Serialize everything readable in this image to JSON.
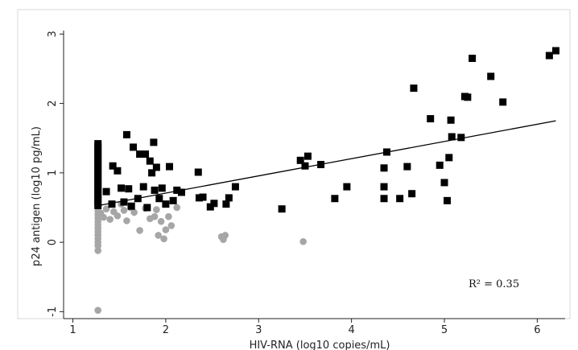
{
  "chart_data": {
    "type": "scatter",
    "xlabel": "HIV-RNA (log10 copies/mL)",
    "ylabel": "p24 antigen (log10 pg/mL)",
    "xlim": [
      0.9,
      6.3
    ],
    "ylim": [
      -1.1,
      3.05
    ],
    "xticks": [
      "1",
      "2",
      "3",
      "4",
      "5",
      "6"
    ],
    "yticks": [
      "-1",
      "0",
      "1",
      "2",
      "3"
    ],
    "grid": false,
    "annotation": "R² = 0.35",
    "colors": {
      "black_series": "#000000",
      "gray_series": "#a6a6a6",
      "fit_line": "#000000"
    },
    "fit_line": {
      "x": [
        1.28,
        6.2
      ],
      "y": [
        0.53,
        1.75
      ]
    },
    "series": [
      {
        "marker": "square",
        "color": "#000000",
        "points": [
          [
            1.27,
            1.42
          ],
          [
            1.27,
            1.38
          ],
          [
            1.27,
            1.33
          ],
          [
            1.27,
            1.28
          ],
          [
            1.27,
            1.23
          ],
          [
            1.27,
            1.18
          ],
          [
            1.27,
            1.13
          ],
          [
            1.27,
            1.08
          ],
          [
            1.27,
            1.03
          ],
          [
            1.27,
            0.98
          ],
          [
            1.27,
            0.93
          ],
          [
            1.27,
            0.88
          ],
          [
            1.27,
            0.83
          ],
          [
            1.27,
            0.78
          ],
          [
            1.27,
            0.73
          ],
          [
            1.27,
            0.68
          ],
          [
            1.27,
            0.63
          ],
          [
            1.27,
            0.58
          ],
          [
            1.27,
            0.53
          ],
          [
            1.36,
            0.73
          ],
          [
            1.42,
            0.55
          ],
          [
            1.43,
            1.1
          ],
          [
            1.48,
            1.03
          ],
          [
            1.52,
            0.78
          ],
          [
            1.55,
            0.58
          ],
          [
            1.58,
            1.55
          ],
          [
            1.6,
            0.77
          ],
          [
            1.63,
            0.52
          ],
          [
            1.65,
            1.37
          ],
          [
            1.7,
            0.63
          ],
          [
            1.72,
            1.27
          ],
          [
            1.76,
            0.8
          ],
          [
            1.78,
            1.27
          ],
          [
            1.8,
            0.5
          ],
          [
            1.83,
            1.17
          ],
          [
            1.85,
            1.0
          ],
          [
            1.87,
            1.44
          ],
          [
            1.88,
            0.75
          ],
          [
            1.9,
            1.08
          ],
          [
            1.93,
            0.63
          ],
          [
            1.96,
            0.78
          ],
          [
            2.0,
            0.55
          ],
          [
            2.04,
            1.09
          ],
          [
            2.08,
            0.6
          ],
          [
            2.12,
            0.75
          ],
          [
            2.17,
            0.72
          ],
          [
            2.35,
            1.01
          ],
          [
            2.36,
            0.64
          ],
          [
            2.4,
            0.65
          ],
          [
            2.48,
            0.51
          ],
          [
            2.52,
            0.56
          ],
          [
            2.65,
            0.55
          ],
          [
            2.68,
            0.64
          ],
          [
            2.75,
            0.8
          ],
          [
            3.25,
            0.48
          ],
          [
            3.45,
            1.18
          ],
          [
            3.5,
            1.1
          ],
          [
            3.53,
            1.24
          ],
          [
            3.67,
            1.12
          ],
          [
            3.82,
            0.63
          ],
          [
            3.95,
            0.8
          ],
          [
            4.35,
            0.63
          ],
          [
            4.35,
            0.8
          ],
          [
            4.35,
            1.07
          ],
          [
            4.38,
            1.3
          ],
          [
            4.52,
            0.63
          ],
          [
            4.6,
            1.09
          ],
          [
            4.65,
            0.7
          ],
          [
            4.67,
            2.22
          ],
          [
            4.85,
            1.78
          ],
          [
            4.95,
            1.11
          ],
          [
            5.0,
            0.86
          ],
          [
            5.03,
            0.6
          ],
          [
            5.05,
            1.22
          ],
          [
            5.07,
            1.76
          ],
          [
            5.08,
            1.52
          ],
          [
            5.18,
            1.51
          ],
          [
            5.22,
            2.1
          ],
          [
            5.25,
            2.09
          ],
          [
            5.3,
            2.65
          ],
          [
            5.5,
            2.39
          ],
          [
            5.63,
            2.02
          ],
          [
            6.13,
            2.69
          ],
          [
            6.2,
            2.76
          ]
        ]
      },
      {
        "marker": "circle",
        "color": "#a6a6a6",
        "points": [
          [
            1.27,
            0.5
          ],
          [
            1.27,
            0.45
          ],
          [
            1.27,
            0.4
          ],
          [
            1.27,
            0.35
          ],
          [
            1.27,
            0.3
          ],
          [
            1.27,
            0.25
          ],
          [
            1.27,
            0.2
          ],
          [
            1.27,
            0.15
          ],
          [
            1.27,
            0.1
          ],
          [
            1.27,
            0.05
          ],
          [
            1.27,
            0.0
          ],
          [
            1.27,
            -0.05
          ],
          [
            1.27,
            -0.12
          ],
          [
            1.27,
            -0.98
          ],
          [
            1.3,
            0.42
          ],
          [
            1.33,
            0.36
          ],
          [
            1.36,
            0.48
          ],
          [
            1.4,
            0.33
          ],
          [
            1.44,
            0.44
          ],
          [
            1.48,
            0.38
          ],
          [
            1.52,
            0.55
          ],
          [
            1.55,
            0.46
          ],
          [
            1.58,
            0.31
          ],
          [
            1.62,
            0.5
          ],
          [
            1.66,
            0.43
          ],
          [
            1.72,
            0.17
          ],
          [
            1.78,
            0.49
          ],
          [
            1.83,
            0.34
          ],
          [
            1.88,
            0.37
          ],
          [
            1.9,
            0.47
          ],
          [
            1.92,
            0.1
          ],
          [
            1.95,
            0.3
          ],
          [
            1.98,
            0.05
          ],
          [
            2.0,
            0.18
          ],
          [
            2.03,
            0.37
          ],
          [
            2.06,
            0.24
          ],
          [
            2.12,
            0.5
          ],
          [
            2.6,
            0.08
          ],
          [
            2.62,
            0.04
          ],
          [
            2.64,
            0.1
          ],
          [
            3.48,
            0.01
          ]
        ]
      }
    ]
  }
}
